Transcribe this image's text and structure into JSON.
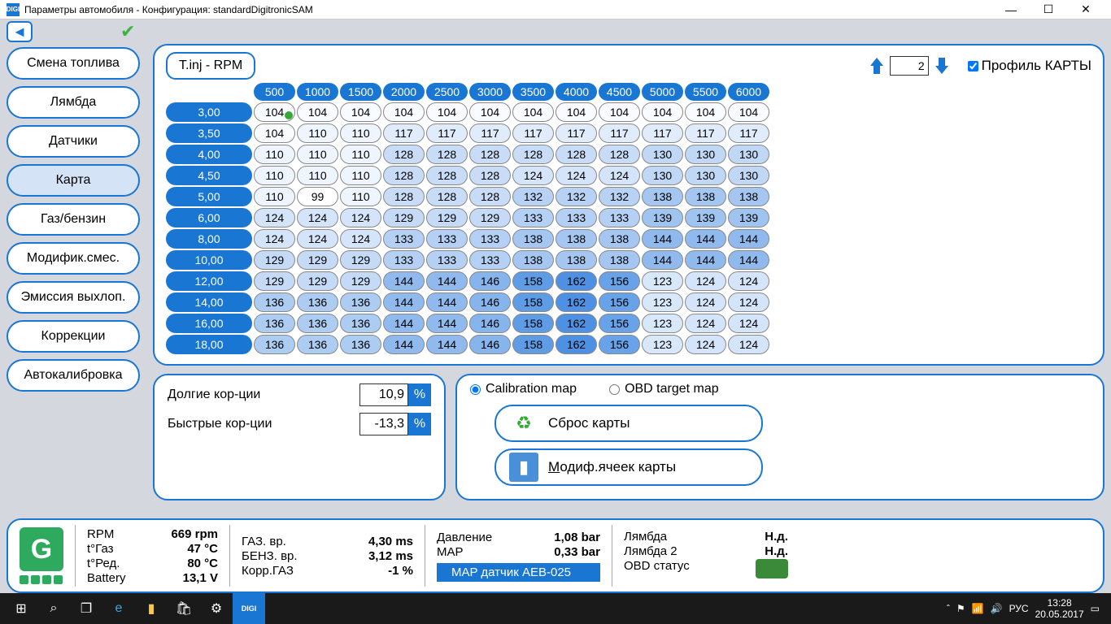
{
  "window": {
    "title": "Параметры автомобиля - Конфигурация: standardDigitronicSAM",
    "icon_text": "DIGI"
  },
  "sidebar": {
    "items": [
      {
        "label": "Смена топлива",
        "active": false
      },
      {
        "label": "Лямбда",
        "active": false
      },
      {
        "label": "Датчики",
        "active": false
      },
      {
        "label": "Карта",
        "active": true
      },
      {
        "label": "Газ/бензин",
        "active": false
      },
      {
        "label": "Модифик.смес.",
        "active": false
      },
      {
        "label": "Эмиссия выхлоп.",
        "active": false
      },
      {
        "label": "Коррекции",
        "active": false
      },
      {
        "label": "Автокалибровка",
        "active": false
      }
    ]
  },
  "map": {
    "axis_label": "T.inj - RPM",
    "profile_value": "2",
    "profile_label": "Профиль КАРТЫ",
    "col_headers": [
      "500",
      "1000",
      "1500",
      "2000",
      "2500",
      "3000",
      "3500",
      "4000",
      "4500",
      "5000",
      "5500",
      "6000"
    ],
    "row_headers": [
      "3,00",
      "3,50",
      "4,00",
      "4,50",
      "5,00",
      "6,00",
      "8,00",
      "10,00",
      "12,00",
      "14,00",
      "16,00",
      "18,00"
    ],
    "cells": [
      [
        104,
        104,
        104,
        104,
        104,
        104,
        104,
        104,
        104,
        104,
        104,
        104
      ],
      [
        104,
        110,
        110,
        117,
        117,
        117,
        117,
        117,
        117,
        117,
        117,
        117
      ],
      [
        110,
        110,
        110,
        128,
        128,
        128,
        128,
        128,
        128,
        130,
        130,
        130
      ],
      [
        110,
        110,
        110,
        128,
        128,
        128,
        124,
        124,
        124,
        130,
        130,
        130
      ],
      [
        110,
        99,
        110,
        128,
        128,
        128,
        132,
        132,
        132,
        138,
        138,
        138
      ],
      [
        124,
        124,
        124,
        129,
        129,
        129,
        133,
        133,
        133,
        139,
        139,
        139
      ],
      [
        124,
        124,
        124,
        133,
        133,
        133,
        138,
        138,
        138,
        144,
        144,
        144
      ],
      [
        129,
        129,
        129,
        133,
        133,
        133,
        138,
        138,
        138,
        144,
        144,
        144
      ],
      [
        129,
        129,
        129,
        144,
        144,
        146,
        158,
        162,
        156,
        123,
        124,
        124
      ],
      [
        136,
        136,
        136,
        144,
        144,
        146,
        158,
        162,
        156,
        123,
        124,
        124
      ],
      [
        136,
        136,
        136,
        144,
        144,
        146,
        158,
        162,
        156,
        123,
        124,
        124
      ],
      [
        136,
        136,
        136,
        144,
        144,
        146,
        158,
        162,
        156,
        123,
        124,
        124
      ]
    ],
    "cell_colors": {
      "99": "#ffffff",
      "104": "#f8fbff",
      "110": "#eef5ff",
      "117": "#e0ecfc",
      "123": "#d8e8fb",
      "124": "#d4e4fa",
      "128": "#c8dcf8",
      "129": "#c4daf7",
      "130": "#c0d8f6",
      "132": "#b8d2f5",
      "133": "#b4d0f4",
      "136": "#acccf2",
      "138": "#a4c6f1",
      "139": "#a0c4f0",
      "144": "#90baee",
      "146": "#86b4ec",
      "156": "#68a2e8",
      "158": "#5e9ce6",
      "162": "#4e91e4"
    }
  },
  "corrections": {
    "long_label": "Долгие кор-ции",
    "long_value": "10,9",
    "fast_label": "Быстрые кор-ции",
    "fast_value": "-13,3",
    "pct": "%"
  },
  "maptype": {
    "calib_label": "Calibration map",
    "obd_label": "OBD target map",
    "reset_label": "Сброс карты",
    "modify_label": "Модиф.ячеек карты"
  },
  "status": {
    "g_label": "G",
    "rpm_label": "RPM",
    "rpm_value": "669 rpm",
    "tgas_label": "t°Газ",
    "tgas_value": "47 °C",
    "tred_label": "t°Ред.",
    "tred_value": "80 °C",
    "batt_label": "Battery",
    "batt_value": "13,1 V",
    "gas_time_label": "ГАЗ. вр.",
    "gas_time_value": "4,30 ms",
    "benz_time_label": "БЕНЗ. вр.",
    "benz_time_value": "3,12 ms",
    "corr_gas_label": "Корр.ГАЗ",
    "corr_gas_value": "-1 %",
    "pressure_label": "Давление",
    "pressure_value": "1,08 bar",
    "map_label": "MAP",
    "map_value": "0,33 bar",
    "map_sensor": "MAP датчик AEB-025",
    "lambda_label": "Лямбда",
    "lambda_value": "Н.д.",
    "lambda2_label": "Лямбда 2",
    "lambda2_value": "Н.д.",
    "obd_status_label": "OBD статус"
  },
  "taskbar": {
    "lang": "РУС",
    "time": "13:28",
    "date": "20.05.2017"
  }
}
